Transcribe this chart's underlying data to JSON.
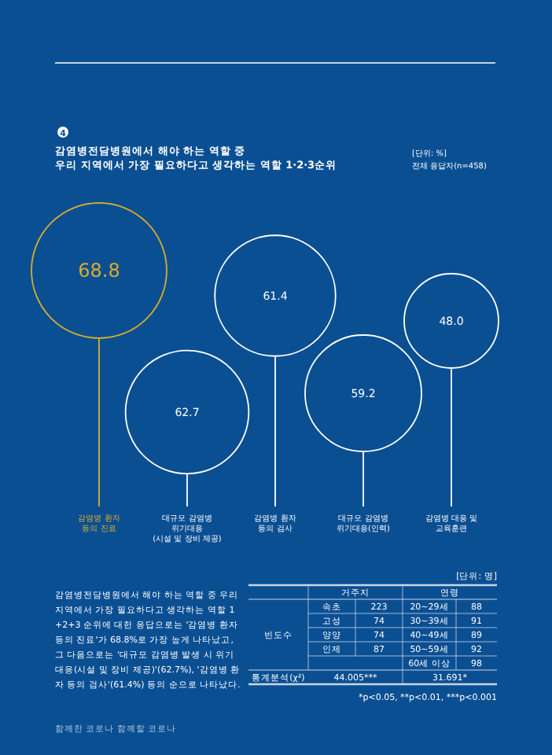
{
  "chart_data": [
    {
      "type": "other",
      "title": "감염병전담병원에서 해야 하는 역할 중\n우리 지역에서 가장 필요하다고 생각하는 역할 1·2·3순위",
      "subtitle": "[단위: %]\n전체 응답자(n=458)",
      "categories": [
        "감염병 환자\n등의 진료",
        "대규모 감염병\n위기대응\n(시설 및 장비 제공)",
        "감염병 환자\n등의 검사",
        "대규모 감염병\n위기대응(인력)",
        "감염병 대응 및\n교육훈련"
      ],
      "values": [
        68.8,
        62.7,
        61.4,
        59.2,
        48.0
      ],
      "colors": [
        "#d9ad2b",
        "#ffffff",
        "#ffffff",
        "#ffffff",
        "#ffffff"
      ],
      "value_labels": [
        "68.8",
        "62.7",
        "61.4",
        "59.2",
        "48.0"
      ],
      "annotations": [
        "4",
        "감염병전담병원에서 해야 하는 역할 중 우리 지역에서 가장 필요하다고 생각하는 역할 1+2+3 순위에 대한 응답으로는 '감염병 환자 등의 진료'가 68.8%로 가장 높게 나타났고, 그 다음으로는 '대규모 감염병 발생 시 위기대응(시설 및 장비 제공)'(62.7%), '감염병 환자 등의 검사'(61.4%) 등의 순으로 나타났다.",
        "함께한 코로나 함께할 코로나"
      ]
    },
    {
      "type": "other",
      "subtitle": "[단위: 명]",
      "annotations": [
        "거주지",
        "연령",
        "빈도수",
        "속초",
        "223",
        "20~29세",
        "88",
        "고성",
        "74",
        "30~39세",
        "91",
        "양양",
        "74",
        "40~49세",
        "89",
        "인제",
        "87",
        "50~59세",
        "92",
        "60세 이상",
        "98",
        "통계분석(χ²)",
        "44.005***",
        "31.691*",
        "*p<0.05, **p<0.01, ***p<0.001"
      ]
    }
  ]
}
